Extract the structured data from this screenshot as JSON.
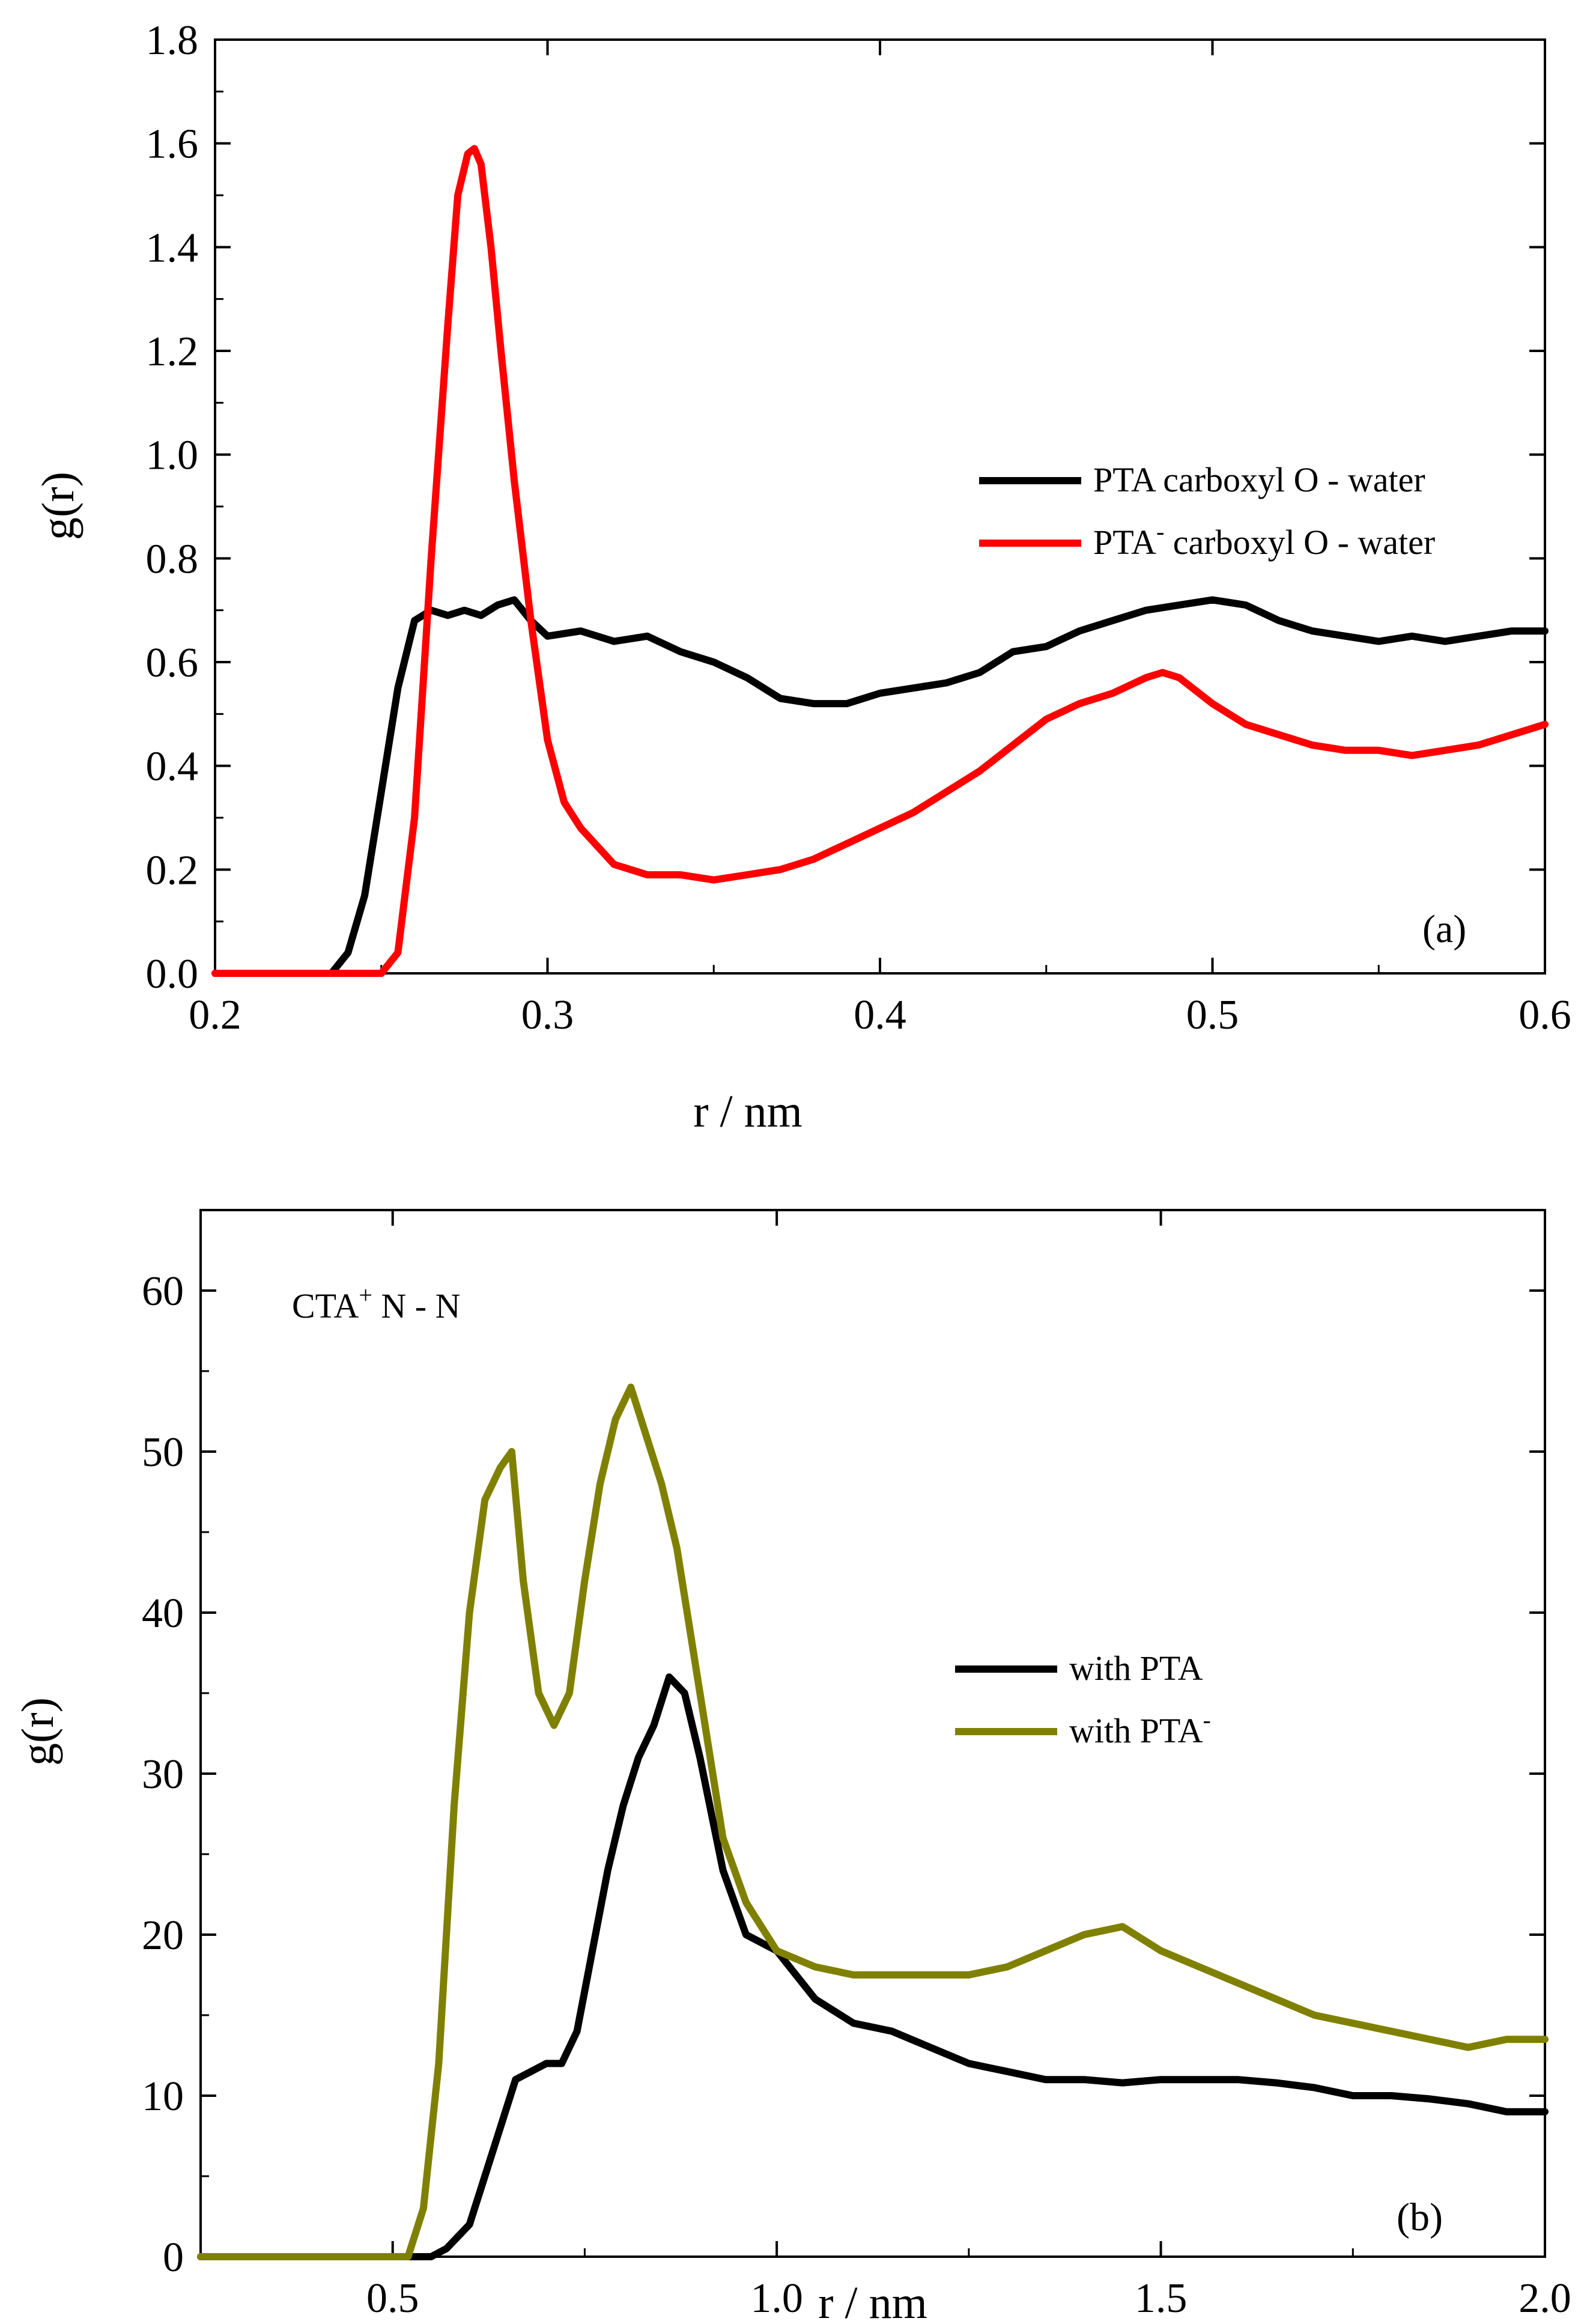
{
  "chart_data": [
    {
      "type": "line",
      "panel_label": "(a)",
      "xlabel": "r / nm",
      "ylabel": "g(r)",
      "xlim": [
        0.2,
        0.6
      ],
      "ylim": [
        0.0,
        1.8
      ],
      "xticks": [
        "0.2",
        "0.3",
        "0.4",
        "0.5",
        "0.6"
      ],
      "yticks": [
        "0.0",
        "0.2",
        "0.4",
        "0.6",
        "0.8",
        "1.0",
        "1.2",
        "1.4",
        "1.6",
        "1.8"
      ],
      "legend_position": "center-right",
      "series": [
        {
          "name": "PTA carboxyl O - water",
          "label_main": "PTA carboxyl O - water",
          "color": "#000000",
          "x": [
            0.2,
            0.235,
            0.24,
            0.245,
            0.25,
            0.255,
            0.26,
            0.265,
            0.27,
            0.275,
            0.28,
            0.285,
            0.29,
            0.295,
            0.3,
            0.31,
            0.32,
            0.33,
            0.34,
            0.35,
            0.36,
            0.37,
            0.38,
            0.39,
            0.4,
            0.41,
            0.42,
            0.43,
            0.44,
            0.45,
            0.46,
            0.47,
            0.48,
            0.49,
            0.5,
            0.51,
            0.52,
            0.53,
            0.54,
            0.55,
            0.56,
            0.57,
            0.58,
            0.59,
            0.6
          ],
          "y": [
            0.0,
            0.0,
            0.04,
            0.15,
            0.35,
            0.55,
            0.68,
            0.7,
            0.69,
            0.7,
            0.69,
            0.71,
            0.72,
            0.68,
            0.65,
            0.66,
            0.64,
            0.65,
            0.62,
            0.6,
            0.57,
            0.53,
            0.52,
            0.52,
            0.54,
            0.55,
            0.56,
            0.58,
            0.62,
            0.63,
            0.66,
            0.68,
            0.7,
            0.71,
            0.72,
            0.71,
            0.68,
            0.66,
            0.65,
            0.64,
            0.65,
            0.64,
            0.65,
            0.66,
            0.66
          ]
        },
        {
          "name": "PTA- carboxyl O - water",
          "label_main": "PTA",
          "label_sup": "-",
          "label_rest": " carboxyl O - water",
          "color": "#ff0000",
          "x": [
            0.2,
            0.25,
            0.255,
            0.26,
            0.265,
            0.27,
            0.273,
            0.276,
            0.278,
            0.28,
            0.283,
            0.286,
            0.29,
            0.295,
            0.3,
            0.305,
            0.31,
            0.32,
            0.33,
            0.34,
            0.35,
            0.36,
            0.37,
            0.38,
            0.39,
            0.4,
            0.41,
            0.42,
            0.43,
            0.44,
            0.45,
            0.46,
            0.47,
            0.48,
            0.485,
            0.49,
            0.5,
            0.51,
            0.52,
            0.53,
            0.54,
            0.55,
            0.56,
            0.57,
            0.58,
            0.59,
            0.6
          ],
          "y": [
            0.0,
            0.0,
            0.04,
            0.3,
            0.8,
            1.25,
            1.5,
            1.58,
            1.59,
            1.56,
            1.4,
            1.2,
            0.95,
            0.68,
            0.45,
            0.33,
            0.28,
            0.21,
            0.19,
            0.19,
            0.18,
            0.19,
            0.2,
            0.22,
            0.25,
            0.28,
            0.31,
            0.35,
            0.39,
            0.44,
            0.49,
            0.52,
            0.54,
            0.57,
            0.58,
            0.57,
            0.52,
            0.48,
            0.46,
            0.44,
            0.43,
            0.43,
            0.42,
            0.43,
            0.44,
            0.46,
            0.48
          ]
        }
      ]
    },
    {
      "type": "line",
      "panel_label": "(b)",
      "annotation_main": "CTA",
      "annotation_sup": "+",
      "annotation_rest": "  N - N",
      "xlabel": "r / nm",
      "ylabel": "g(r)",
      "xlim": [
        0.25,
        2.0
      ],
      "ylim": [
        0,
        65
      ],
      "xticks": [
        "0.5",
        "1.0",
        "1.5",
        "2.0"
      ],
      "yticks": [
        "0",
        "10",
        "20",
        "30",
        "40",
        "50",
        "60"
      ],
      "legend_position": "center-right",
      "series": [
        {
          "name": "with PTA",
          "label_main": "with PTA",
          "color": "#000000",
          "x": [
            0.25,
            0.55,
            0.57,
            0.6,
            0.62,
            0.64,
            0.66,
            0.68,
            0.7,
            0.72,
            0.74,
            0.76,
            0.78,
            0.8,
            0.82,
            0.84,
            0.86,
            0.88,
            0.9,
            0.93,
            0.96,
            1.0,
            1.05,
            1.1,
            1.15,
            1.2,
            1.25,
            1.3,
            1.35,
            1.4,
            1.45,
            1.5,
            1.55,
            1.6,
            1.65,
            1.7,
            1.75,
            1.8,
            1.85,
            1.9,
            1.95,
            2.0
          ],
          "y": [
            0,
            0,
            0.5,
            2,
            5,
            8,
            11,
            11.5,
            12,
            12,
            14,
            19,
            24,
            28,
            31,
            33,
            36,
            35,
            31,
            24,
            20,
            19,
            16,
            14.5,
            14,
            13,
            12,
            11.5,
            11,
            11,
            10.8,
            11,
            11,
            11,
            10.8,
            10.5,
            10,
            10,
            9.8,
            9.5,
            9,
            9
          ]
        },
        {
          "name": "with PTA-",
          "label_main": "with PTA",
          "label_sup": "-",
          "color": "#808000",
          "x": [
            0.25,
            0.52,
            0.54,
            0.56,
            0.58,
            0.6,
            0.62,
            0.64,
            0.655,
            0.67,
            0.69,
            0.71,
            0.73,
            0.75,
            0.77,
            0.79,
            0.81,
            0.83,
            0.85,
            0.87,
            0.9,
            0.93,
            0.96,
            1.0,
            1.05,
            1.1,
            1.15,
            1.2,
            1.25,
            1.3,
            1.35,
            1.4,
            1.45,
            1.5,
            1.55,
            1.6,
            1.65,
            1.7,
            1.75,
            1.8,
            1.85,
            1.9,
            1.95,
            2.0
          ],
          "y": [
            0,
            0,
            3,
            12,
            28,
            40,
            47,
            49,
            50,
            42,
            35,
            33,
            35,
            42,
            48,
            52,
            54,
            51,
            48,
            44,
            35,
            26,
            22,
            19,
            18,
            17.5,
            17.5,
            17.5,
            17.5,
            18,
            19,
            20,
            20.5,
            19,
            18,
            17,
            16,
            15,
            14.5,
            14,
            13.5,
            13,
            13.5,
            13.5
          ]
        }
      ]
    }
  ]
}
